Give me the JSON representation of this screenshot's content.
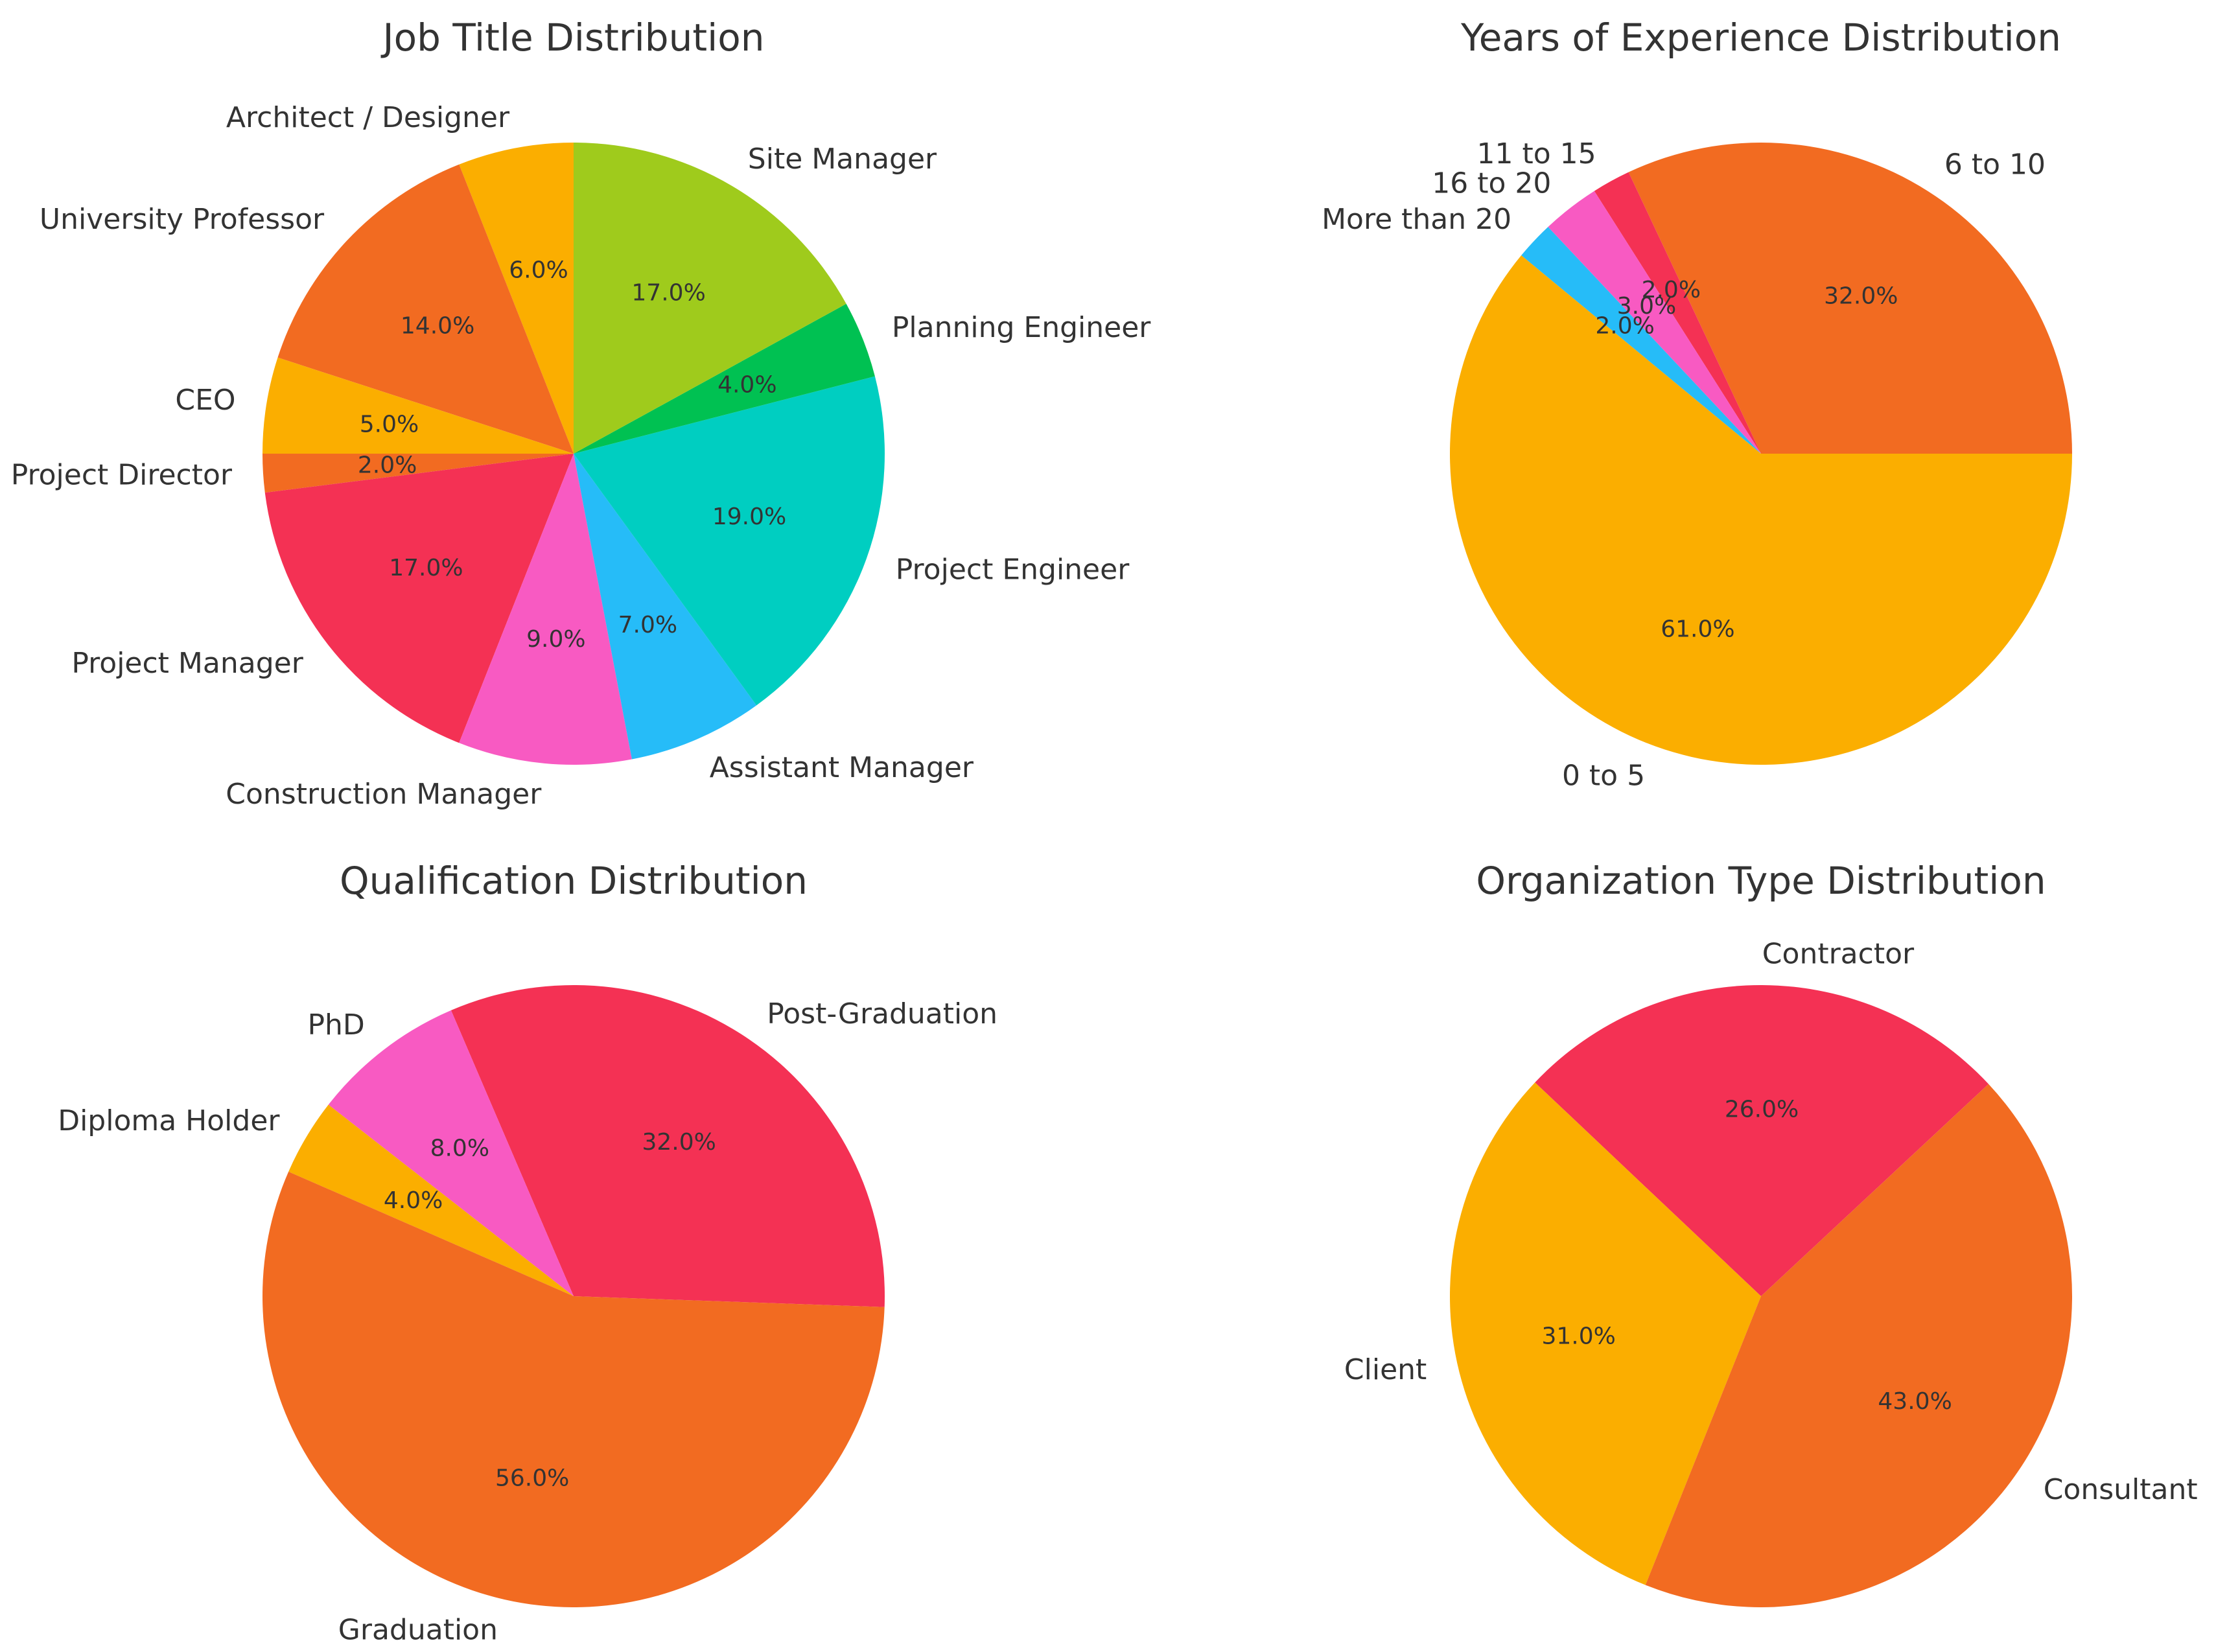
{
  "palette": {
    "orange": "#F26B21",
    "amber": "#FBAE00",
    "lime": "#9FCB1C",
    "green": "#00C152",
    "teal": "#00CEC1",
    "sky": "#26BCF8",
    "pink": "#F85AC2",
    "red": "#F43154",
    "text": "#333333"
  },
  "chart_data": [
    {
      "type": "pie",
      "title": "Job Title Distribution",
      "start_angle": 90,
      "counterclock": true,
      "labels": [
        "Architect / Designer",
        "University Professor",
        "CEO",
        "Project Director",
        "Project Manager",
        "Construction Manager",
        "Assistant Manager",
        "Project Engineer",
        "Planning Engineer",
        "Site Manager"
      ],
      "values": [
        6.0,
        14.0,
        5.0,
        2.0,
        17.0,
        9.0,
        7.0,
        19.0,
        4.0,
        17.0
      ],
      "percent_labels": [
        "6.0%",
        "14.0%",
        "5.0%",
        "2.0%",
        "17.0%",
        "9.0%",
        "7.0%",
        "19.0%",
        "4.0%",
        "17.0%"
      ],
      "colors": [
        "#FBAE00",
        "#F26B21",
        "#FBAE00",
        "#F26B21",
        "#F43154",
        "#F85AC2",
        "#26BCF8",
        "#00CEC1",
        "#00C152",
        "#9FCB1C"
      ]
    },
    {
      "type": "pie",
      "title": "Years of Experience Distribution",
      "start_angle": 0,
      "counterclock": true,
      "labels": [
        "6 to 10",
        "11 to 15",
        "16 to 20",
        "More than 20",
        "0 to 5"
      ],
      "values": [
        32.0,
        2.0,
        3.0,
        2.0,
        61.0
      ],
      "percent_labels": [
        "32.0%",
        "2.0%",
        "3.0%",
        "2.0%",
        "61.0%"
      ],
      "colors": [
        "#F26B21",
        "#F43154",
        "#F85AC2",
        "#26BCF8",
        "#FBAE00"
      ]
    },
    {
      "type": "pie",
      "title": "Qualification Distribution",
      "start_angle": -2,
      "counterclock": true,
      "labels": [
        "Post-Graduation",
        "PhD",
        "Diploma Holder",
        "Graduation"
      ],
      "values": [
        32.0,
        8.0,
        4.0,
        56.0
      ],
      "percent_labels": [
        "32.0%",
        "8.0%",
        "4.0%",
        "56.0%"
      ],
      "colors": [
        "#F43154",
        "#F85AC2",
        "#FBAE00",
        "#F26B21"
      ]
    },
    {
      "type": "pie",
      "title": "Organization Type Distribution",
      "start_angle": 43,
      "counterclock": true,
      "labels": [
        "Contractor",
        "Client",
        "Consultant"
      ],
      "values": [
        26.0,
        31.0,
        43.0
      ],
      "percent_labels": [
        "26.0%",
        "31.0%",
        "43.0%"
      ],
      "colors": [
        "#F43154",
        "#FBAE00",
        "#F26B21"
      ]
    }
  ]
}
